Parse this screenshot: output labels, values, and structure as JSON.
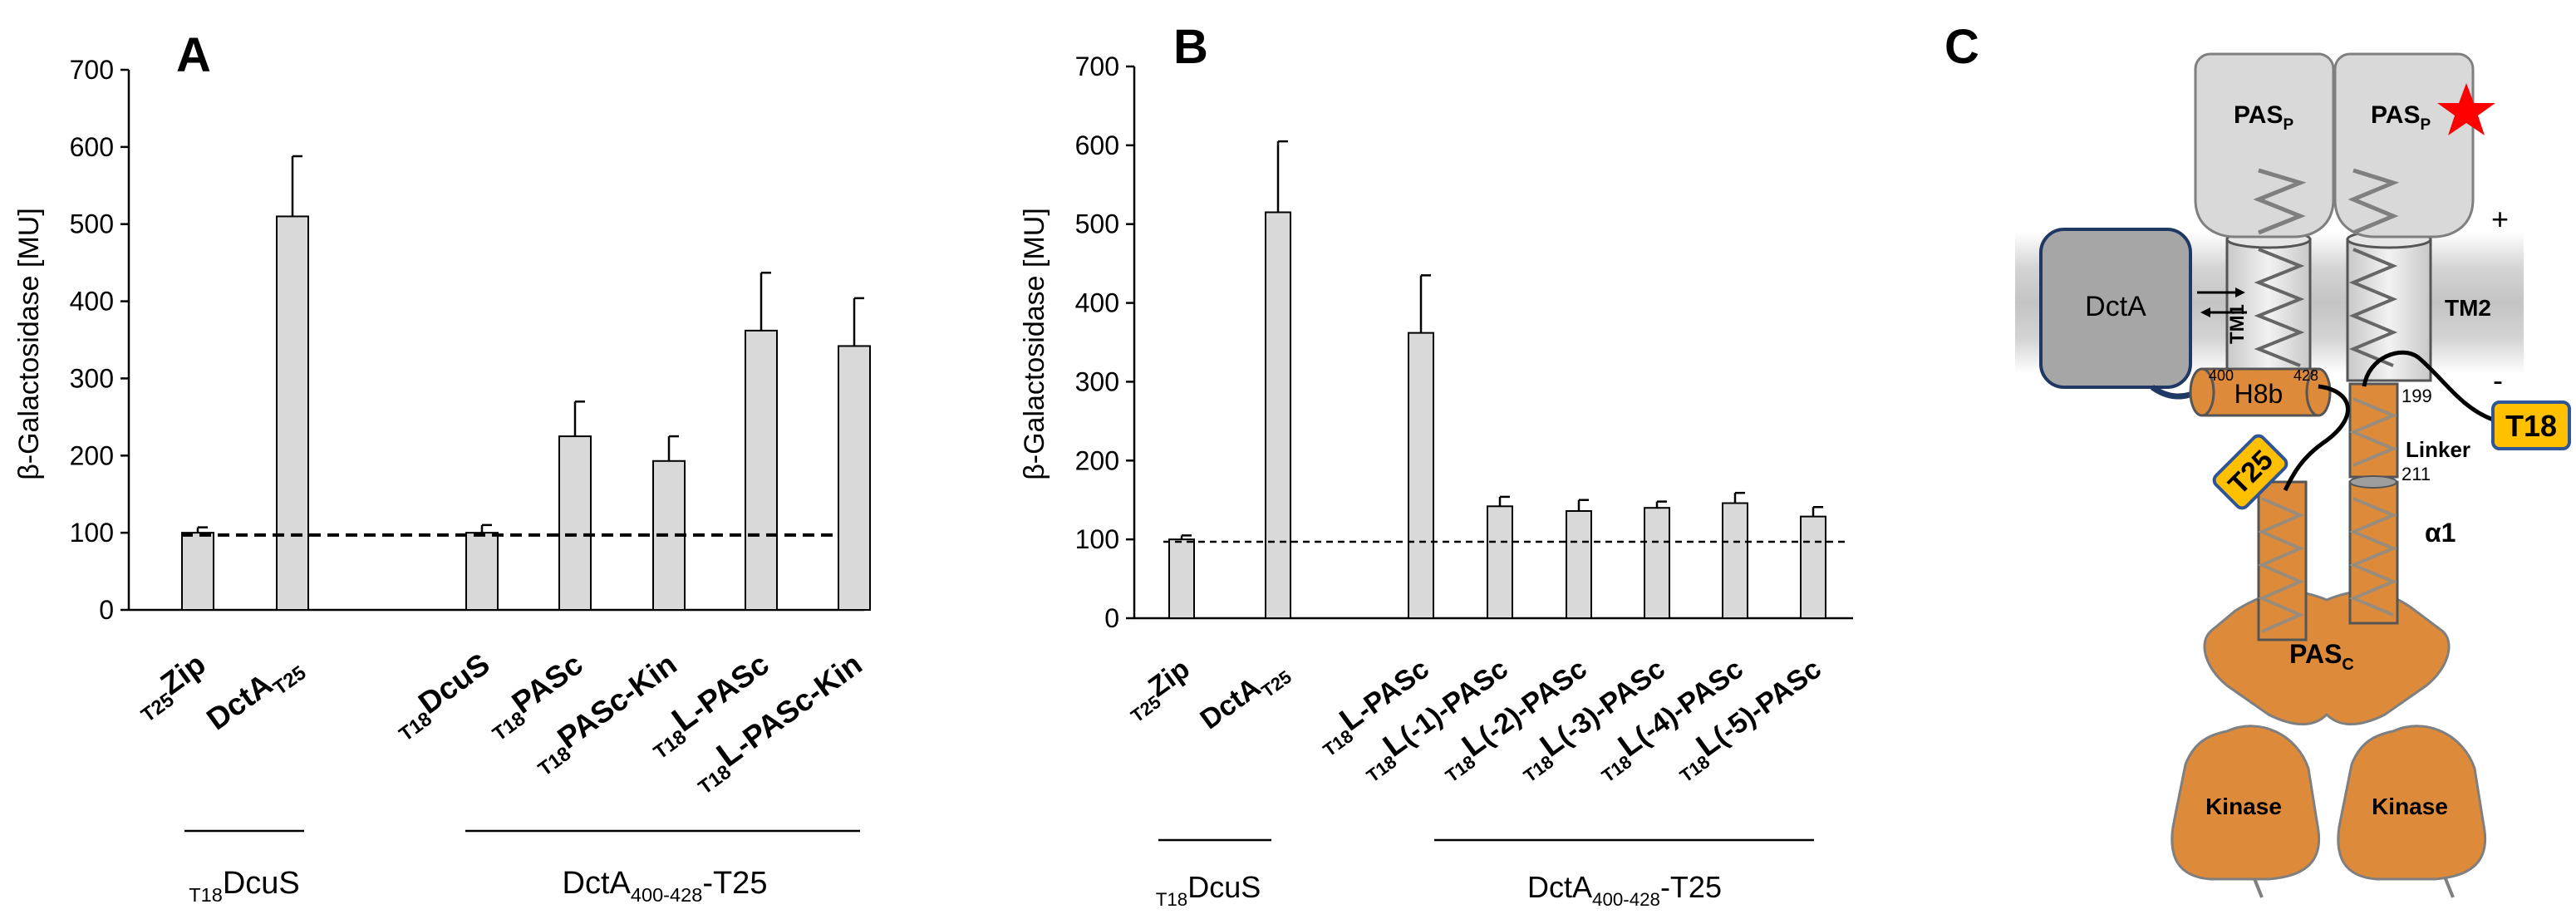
{
  "figure": {
    "panel_labels": [
      "A",
      "B",
      "C"
    ]
  },
  "chart_data": [
    {
      "type": "bar",
      "panel": "A",
      "ylabel": "β-Galactosidase [MU]",
      "ylim": [
        0,
        700
      ],
      "yticks": [
        0,
        100,
        200,
        300,
        400,
        500,
        600,
        700
      ],
      "reference_line": 97,
      "bar_color": "#d9d9d9",
      "categories": [
        {
          "sub": "T25",
          "main": "Zip",
          "rest": "",
          "bold_L": false
        },
        {
          "sub": "",
          "main": "DctA",
          "after_sub": "T25",
          "rest": "",
          "bold_L": false
        },
        {
          "sub": "T18",
          "main": "DcuS",
          "rest": "",
          "bold_L": false
        },
        {
          "sub": "T18",
          "main": "PASc",
          "rest": "",
          "bold_L": false
        },
        {
          "sub": "T18",
          "main": "PASc-Kin",
          "rest": "",
          "bold_L": false
        },
        {
          "sub": "T18",
          "main": "L",
          "rest": "-PASc",
          "bold_L": true
        },
        {
          "sub": "T18",
          "main": "L",
          "rest": "-PASc-Kin",
          "bold_L": true
        }
      ],
      "values": [
        100,
        510,
        100,
        225,
        193,
        362,
        342
      ],
      "errors": [
        7,
        78,
        10,
        45,
        32,
        75,
        62
      ],
      "groups": [
        {
          "label_sub": "T18",
          "label": "DcuS",
          "label_after_sub": "",
          "label_after": ""
        },
        {
          "label_sub": "",
          "label": "DctA",
          "label_after_sub": "400-428",
          "label_after": "-T25"
        }
      ]
    },
    {
      "type": "bar",
      "panel": "B",
      "ylabel": "β-Galactosidase [MU]",
      "ylim": [
        0,
        700
      ],
      "yticks": [
        0,
        100,
        200,
        300,
        400,
        500,
        600,
        700
      ],
      "reference_line": 97,
      "bar_color": "#d9d9d9",
      "categories": [
        {
          "sub": "T25",
          "main": "Zip",
          "rest": "",
          "bold_L": false
        },
        {
          "sub": "",
          "main": "DctA",
          "after_sub": "T25",
          "rest": "",
          "bold_L": false
        },
        {
          "sub": "T18",
          "main": "L",
          "rest": "-PASc",
          "bold_L": true
        },
        {
          "sub": "T18",
          "main": "L",
          "rest": "(-1)-PASc",
          "bold_L": true
        },
        {
          "sub": "T18",
          "main": "L",
          "rest": "(-2)-PASc",
          "bold_L": true
        },
        {
          "sub": "T18",
          "main": "L",
          "rest": "(-3)-PASc",
          "bold_L": true
        },
        {
          "sub": "T18",
          "main": "L",
          "rest": "(-4)-PASc",
          "bold_L": true
        },
        {
          "sub": "T18",
          "main": "L",
          "rest": "(-5)-PASc",
          "bold_L": true
        }
      ],
      "values": [
        100,
        515,
        362,
        142,
        136,
        140,
        146,
        129
      ],
      "errors": [
        5,
        90,
        73,
        12,
        14,
        8,
        13,
        12
      ],
      "groups": [
        {
          "label_sub": "T18",
          "label": "DcuS",
          "label_after_sub": "",
          "label_after": ""
        },
        {
          "label_sub": "",
          "label": "DctA",
          "label_after_sub": "400-428",
          "label_after": "-T25"
        }
      ]
    }
  ],
  "diagram": {
    "pas_p_left": {
      "main": "PAS",
      "sub": "P"
    },
    "pas_p_right": {
      "main": "PAS",
      "sub": "P"
    },
    "pas_c": {
      "main": "PAS",
      "sub": "C"
    },
    "dcta": "DctA",
    "tm1": "TM1",
    "tm2": "TM2",
    "h8b": "H8b",
    "h8b_start": "400",
    "h8b_end": "428",
    "res_199": "199",
    "res_211": "211",
    "linker": "Linker",
    "alpha1": "α1",
    "kinase_left": "Kinase",
    "kinase_right": "Kinase",
    "t18": "T18",
    "t25": "T25",
    "plus": "+",
    "minus": "-",
    "colors": {
      "orange": "#dd8a3a",
      "gray_domain": "#d9d9d9",
      "dcta": "#a6a6a6",
      "tag_yellow": "#ffc000",
      "tag_border": "#2f5597",
      "star": "#ff0000"
    }
  }
}
